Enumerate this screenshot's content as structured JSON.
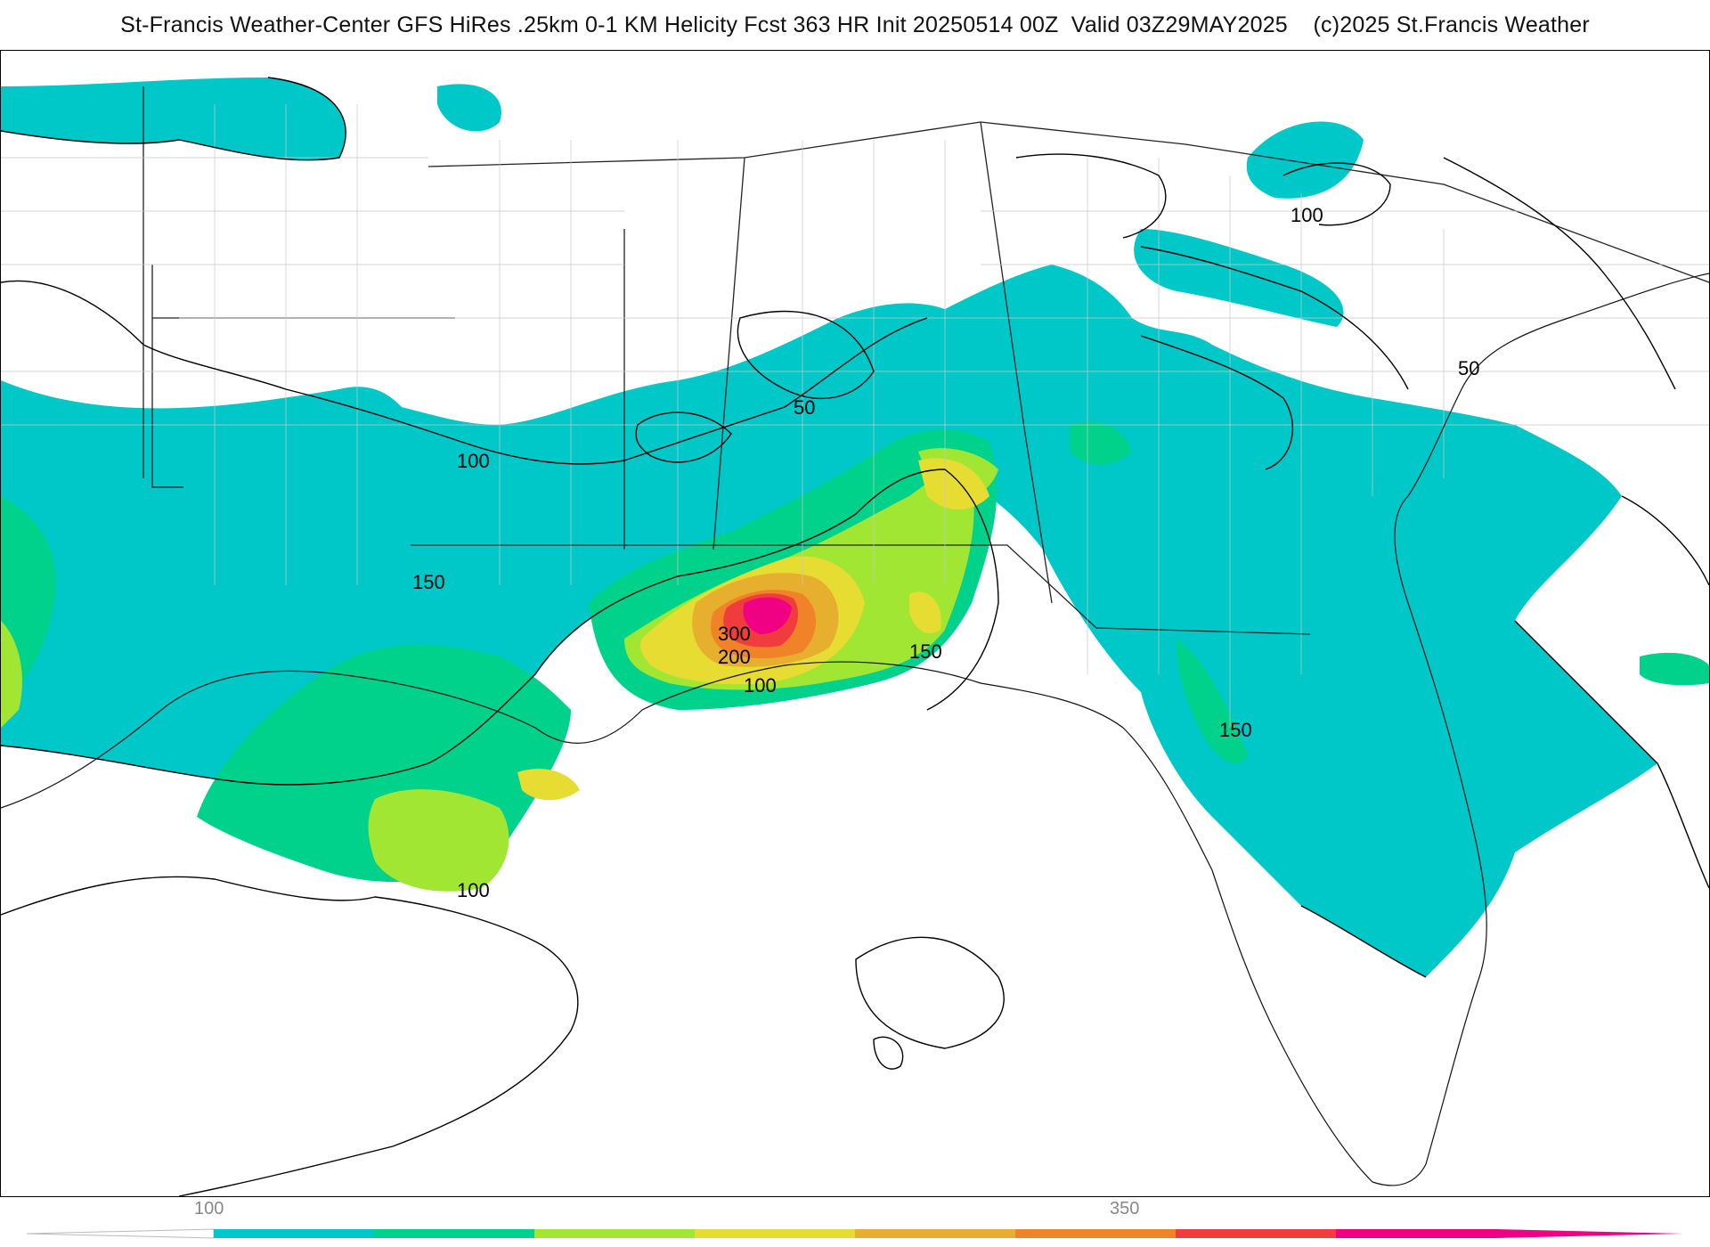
{
  "header": {
    "title": "St-Francis Weather-Center GFS HiRes .25km 0-1 KM Helicity Fcst 363 HR Init 20250514 00Z  Valid 03Z29MAY2025    (c)2025 St.Francis Weather"
  },
  "map": {
    "variable": "0-1 KM Helicity",
    "region": "Gulf Coast / Southeast US",
    "contour_labels": [
      {
        "text": "50"
      },
      {
        "text": "50"
      },
      {
        "text": "100"
      },
      {
        "text": "100"
      },
      {
        "text": "100"
      },
      {
        "text": "100"
      },
      {
        "text": "150"
      },
      {
        "text": "150"
      },
      {
        "text": "150"
      },
      {
        "text": "200"
      },
      {
        "text": "300"
      }
    ]
  },
  "colorbar": {
    "tick_labels": [
      "100",
      "350"
    ],
    "colors": [
      "#00c8c8",
      "#00d28c",
      "#a0e632",
      "#e6dc32",
      "#e6af2d",
      "#f08228",
      "#f03c3c",
      "#f00082"
    ]
  }
}
